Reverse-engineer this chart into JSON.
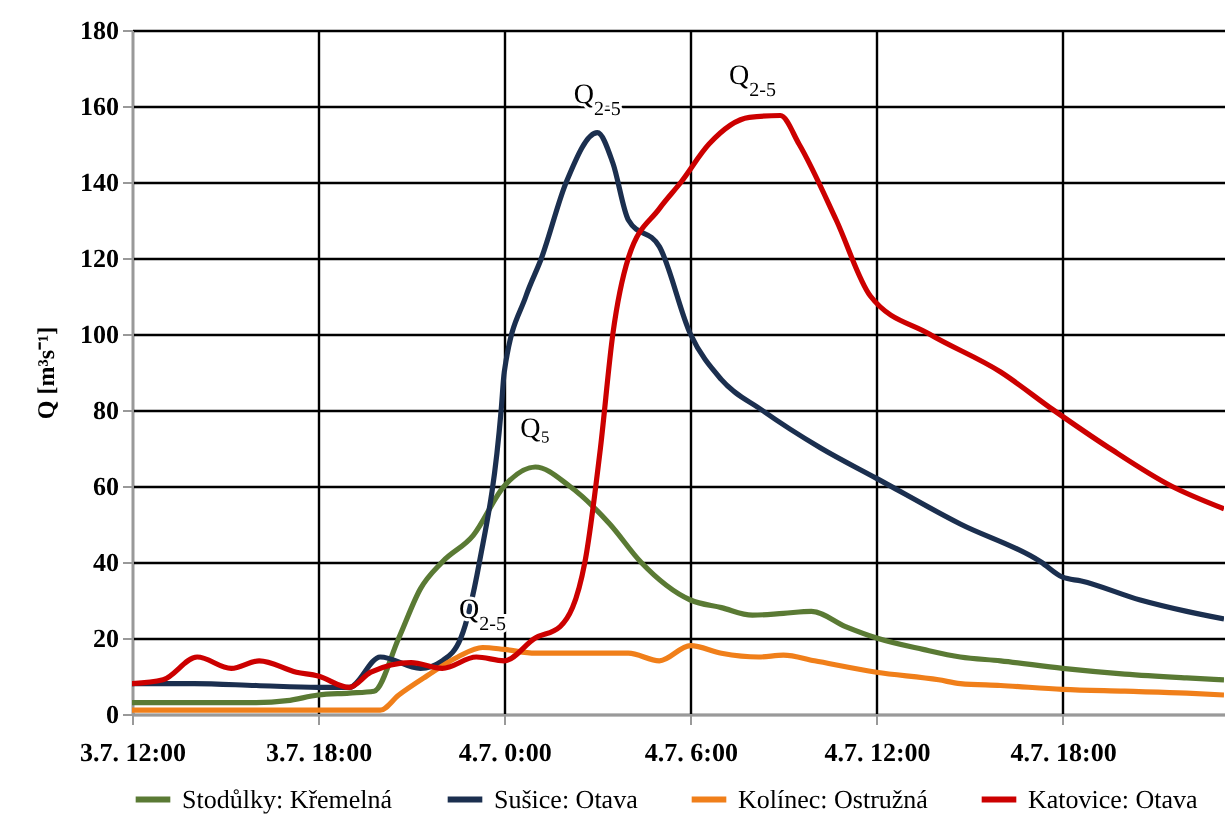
{
  "chart_data": {
    "type": "line",
    "ylabel": "Q [m³s⁻¹]",
    "xlim": [
      "--07-03T12:00",
      "--07-04T23:12"
    ],
    "ylim": [
      0,
      180
    ],
    "xticks": [
      {
        "value": "--07-03T12:00",
        "label": "3.7. 12:00"
      },
      {
        "value": "--07-03T18:00",
        "label": "3.7. 18:00"
      },
      {
        "value": "--07-04T00:00",
        "label": "4.7. 0:00"
      },
      {
        "value": "--07-04T06:00",
        "label": "4.7. 6:00"
      },
      {
        "value": "--07-04T12:00",
        "label": "4.7. 12:00"
      },
      {
        "value": "--07-04T18:00",
        "label": "4.7. 18:00"
      }
    ],
    "yticks": [
      0,
      20,
      40,
      60,
      80,
      100,
      120,
      140,
      160,
      180
    ],
    "grid": true,
    "legend": "bottom",
    "marker": "none",
    "line_style": "solid",
    "annotations": [
      {
        "text": "Q$_{2-5}$",
        "x": "--07-04T03:00",
        "y": 153
      },
      {
        "text": "Q$_{2-5}$",
        "x": "--07-04T08:00",
        "y": 158
      },
      {
        "text": "Q₅",
        "x": "--07-04T01:00",
        "y": 65
      },
      {
        "text": "Q$_{2-5}$",
        "x": "--07-03T23:18",
        "y": 17.5
      }
    ],
    "series": [
      {
        "name": "Stodůlky: Křemelná",
        "color": "#5a7a34",
        "x": [
          "--07-03T12:00",
          "--07-03T14:00",
          "--07-03T16:00",
          "--07-03T17:00",
          "--07-03T18:00",
          "--07-03T19:00",
          "--07-03T19:48",
          "--07-03T20:36",
          "--07-03T21:18",
          "--07-03T22:00",
          "--07-03T23:00",
          "--07-04T00:00",
          "--07-04T01:00",
          "--07-04T02:06",
          "--07-04T03:24",
          "--07-04T04:24",
          "--07-04T06:00",
          "--07-04T07:00",
          "--07-04T08:00",
          "--07-04T09:00",
          "--07-04T09:54",
          "--07-04T11:00",
          "--07-04T12:00",
          "--07-04T13:30",
          "--07-04T14:42",
          "--07-04T16:00",
          "--07-04T18:00",
          "--07-04T20:00",
          "--07-04T22:00",
          "--07-04T23:12"
        ],
        "values": [
          3,
          3,
          3,
          3.5,
          5,
          5.5,
          6,
          20,
          33,
          40,
          47,
          60,
          65,
          60,
          50,
          40,
          30,
          28,
          26,
          26.5,
          27,
          23,
          20,
          17,
          15,
          14,
          12,
          10.5,
          9.5,
          9
        ]
      },
      {
        "name": "Sušice: Otava",
        "color": "#1b2f4f",
        "x": [
          "--07-03T12:00",
          "--07-03T14:00",
          "--07-03T16:00",
          "--07-03T18:00",
          "--07-03T19:00",
          "--07-03T20:00",
          "--07-03T21:18",
          "--07-03T22:00",
          "--07-03T22:36",
          "--07-03T23:12",
          "--07-03T23:54",
          "--07-04T00:00",
          "--07-04T00:42",
          "--07-04T01:12",
          "--07-04T02:00",
          "--07-04T03:00",
          "--07-04T03:30",
          "--07-04T04:00",
          "--07-04T05:00",
          "--07-04T06:00",
          "--07-04T07:00",
          "--07-04T08:18",
          "--07-04T10:12",
          "--07-04T12:00",
          "--07-04T14:42",
          "--07-04T17:18",
          "--07-04T18:00",
          "--07-04T18:36",
          "--07-04T20:30",
          "--07-04T22:00",
          "--07-04T23:12"
        ],
        "values": [
          8,
          8,
          7.5,
          7,
          7,
          15,
          12,
          14,
          20,
          40,
          80,
          90,
          110,
          120,
          140,
          153,
          145,
          130,
          123,
          100,
          88,
          80,
          70,
          62,
          50,
          40,
          36,
          35,
          30,
          27,
          25
        ]
      },
      {
        "name": "Kolínec: Ostružná",
        "color": "#f07f1a",
        "x": [
          "--07-03T12:00",
          "--07-03T14:00",
          "--07-03T16:00",
          "--07-03T18:00",
          "--07-03T19:00",
          "--07-03T20:00",
          "--07-03T20:36",
          "--07-03T21:30",
          "--07-03T22:30",
          "--07-03T23:18",
          "--07-04T00:00",
          "--07-04T01:00",
          "--07-04T02:00",
          "--07-04T03:00",
          "--07-04T04:00",
          "--07-04T05:00",
          "--07-04T06:00",
          "--07-04T07:00",
          "--07-04T08:12",
          "--07-04T09:00",
          "--07-04T10:00",
          "--07-04T12:00",
          "--07-04T14:00",
          "--07-04T14:42",
          "--07-04T16:00",
          "--07-04T18:00",
          "--07-04T20:00",
          "--07-04T22:00",
          "--07-04T23:12"
        ],
        "values": [
          1,
          1,
          1,
          1,
          1,
          1,
          5,
          10,
          15,
          17.5,
          17,
          16,
          16,
          16,
          16,
          14,
          18,
          16,
          15,
          15.5,
          14,
          11,
          9,
          8,
          7.5,
          6.5,
          6,
          5.5,
          5
        ]
      },
      {
        "name": "Katovice: Otava",
        "color": "#cc0000",
        "x": [
          "--07-03T12:00",
          "--07-03T13:00",
          "--07-03T14:06",
          "--07-03T15:12",
          "--07-03T16:06",
          "--07-03T17:18",
          "--07-03T18:00",
          "--07-03T19:00",
          "--07-03T19:42",
          "--07-03T21:00",
          "--07-03T22:00",
          "--07-03T23:06",
          "--07-04T00:00",
          "--07-04T01:00",
          "--07-04T01:48",
          "--07-04T02:36",
          "--07-04T03:06",
          "--07-04T03:30",
          "--07-04T04:00",
          "--07-04T05:00",
          "--07-04T05:42",
          "--07-04T06:36",
          "--07-04T07:54",
          "--07-04T08:54",
          "--07-04T09:30",
          "--07-04T10:42",
          "--07-04T11:48",
          "--07-04T13:42",
          "--07-04T16:00",
          "--07-04T17:42",
          "--07-04T19:30",
          "--07-04T21:30",
          "--07-04T23:12"
        ],
        "values": [
          8,
          9,
          15,
          12,
          14,
          11,
          10,
          7,
          11,
          13.5,
          12,
          15,
          14,
          20,
          23,
          40,
          70,
          100,
          120,
          133,
          140,
          150,
          157,
          157.5,
          150,
          130,
          110,
          100,
          90,
          80,
          70,
          60,
          54
        ]
      }
    ]
  }
}
